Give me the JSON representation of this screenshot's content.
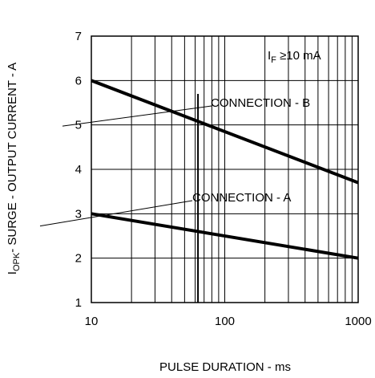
{
  "chart_data": {
    "type": "line",
    "x_scale": "log",
    "xlim": [
      10,
      1000
    ],
    "ylim": [
      1,
      7
    ],
    "grid": true,
    "x_ticks": [
      10,
      100,
      1000
    ],
    "x_tick_labels": [
      "10",
      "100",
      "1000"
    ],
    "y_ticks": [
      1,
      2,
      3,
      4,
      5,
      6,
      7
    ],
    "y_tick_labels": [
      "1",
      "2",
      "3",
      "4",
      "5",
      "6",
      "7"
    ],
    "xlabel": "PULSE DURATION - ms",
    "ylabel_main": "I",
    "ylabel_sub": "OPK",
    "ylabel_rest": "- SURGE - OUTPUT CURRENT - A",
    "condition_main": "I",
    "condition_sub": "F",
    "condition_rest": " ≥10 mA",
    "series": [
      {
        "name": "CONNECTION - B",
        "x": [
          10,
          1000
        ],
        "y": [
          6.0,
          3.7
        ]
      },
      {
        "name": "CONNECTION - A",
        "x": [
          10,
          1000
        ],
        "y": [
          3.0,
          2.0
        ]
      }
    ],
    "marker_line_x": 63,
    "colors": {
      "line": "#000000",
      "grid": "#000000"
    }
  }
}
